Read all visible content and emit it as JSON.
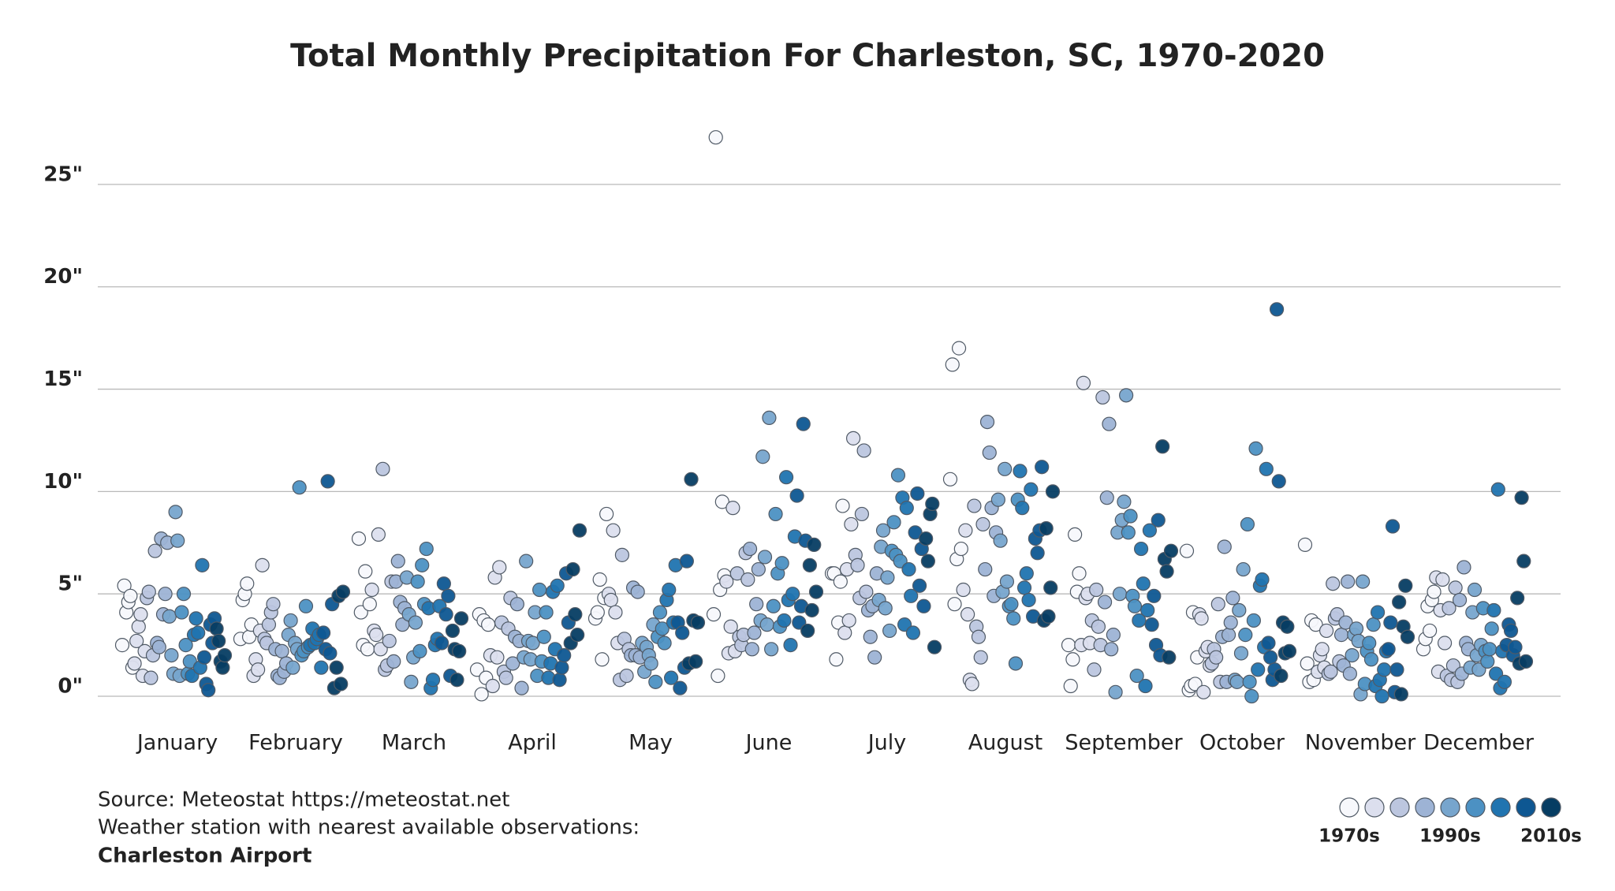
{
  "chart_data": {
    "type": "strip",
    "title": "Total Monthly Precipitation For Charleston, SC, 1970-2020",
    "categories": [
      "January",
      "February",
      "March",
      "April",
      "May",
      "June",
      "July",
      "August",
      "September",
      "October",
      "November",
      "December"
    ],
    "values": [
      [
        2.5,
        5.4,
        4.1,
        4.6,
        4.9,
        1.4,
        1.6,
        2.7,
        3.4,
        4.0,
        1.0,
        2.2,
        4.8,
        5.1,
        0.9,
        2.0,
        7.1,
        2.6,
        2.4,
        7.7,
        4.0,
        5.0,
        7.5,
        3.9,
        2.0,
        1.1,
        9.0,
        7.6,
        1.0,
        4.1,
        5.0,
        2.5,
        1.1,
        1.7,
        1.0,
        3.0,
        3.8,
        3.1,
        1.4,
        6.4,
        1.9,
        0.6,
        0.3,
        3.5,
        2.6,
        3.8,
        3.3,
        2.7,
        1.7,
        1.4,
        2.0
      ],
      [
        2.8,
        4.7,
        5.0,
        5.5,
        2.9,
        3.5,
        1.0,
        1.8,
        1.3,
        3.2,
        6.4,
        2.8,
        2.6,
        3.5,
        4.1,
        4.5,
        2.3,
        1.0,
        0.9,
        2.2,
        1.2,
        1.6,
        3.0,
        3.7,
        1.4,
        2.6,
        2.3,
        10.2,
        2.0,
        2.2,
        4.4,
        2.4,
        2.5,
        3.3,
        2.6,
        2.8,
        3.0,
        1.4,
        3.1,
        2.3,
        10.5,
        2.1,
        4.5,
        0.4,
        1.4,
        4.9,
        0.6,
        5.1
      ],
      [
        7.7,
        4.1,
        2.5,
        6.1,
        2.3,
        4.5,
        5.2,
        3.2,
        3.0,
        7.9,
        2.3,
        11.1,
        1.3,
        1.5,
        2.7,
        5.6,
        1.7,
        5.6,
        6.6,
        4.6,
        3.5,
        4.3,
        5.8,
        4.0,
        0.7,
        1.9,
        3.6,
        5.6,
        2.2,
        6.4,
        4.5,
        7.2,
        4.3,
        0.4,
        0.8,
        2.5,
        2.8,
        4.4,
        2.6,
        5.5,
        4.0,
        4.9,
        1.0,
        3.2,
        2.3,
        0.8,
        2.2,
        3.8
      ],
      [
        1.3,
        4.0,
        0.1,
        3.7,
        0.9,
        3.5,
        2.0,
        0.5,
        5.8,
        1.9,
        6.3,
        3.6,
        1.2,
        0.9,
        3.3,
        4.8,
        1.6,
        2.9,
        4.5,
        2.7,
        0.4,
        1.9,
        6.6,
        2.7,
        1.8,
        2.6,
        4.1,
        1.0,
        5.2,
        1.7,
        2.9,
        4.1,
        0.9,
        1.6,
        5.1,
        2.3,
        5.4,
        0.8,
        1.4,
        2.0,
        6.0,
        3.6,
        2.6,
        6.2,
        4.0,
        3.0,
        8.1
      ],
      [
        3.8,
        4.1,
        5.7,
        1.8,
        4.8,
        8.9,
        5.0,
        4.7,
        8.1,
        4.1,
        2.6,
        0.8,
        6.9,
        2.8,
        1.0,
        2.3,
        2.0,
        5.3,
        2.0,
        5.1,
        1.9,
        2.6,
        1.2,
        2.4,
        2.0,
        1.6,
        3.5,
        0.7,
        2.9,
        4.1,
        3.3,
        2.6,
        4.7,
        5.2,
        0.9,
        3.6,
        6.4,
        3.6,
        0.4,
        3.1,
        1.4,
        6.6,
        1.6,
        10.6,
        3.7,
        1.7,
        3.6
      ],
      [
        4.0,
        27.3,
        1.0,
        5.2,
        9.5,
        5.9,
        5.6,
        2.1,
        3.4,
        9.2,
        2.2,
        6.0,
        2.9,
        2.5,
        3.0,
        7.0,
        5.7,
        7.2,
        2.3,
        3.1,
        4.5,
        6.2,
        3.7,
        11.7,
        6.8,
        3.5,
        13.6,
        2.3,
        4.4,
        8.9,
        6.0,
        3.4,
        6.5,
        3.7,
        10.7,
        4.7,
        2.5,
        5.0,
        7.8,
        9.8,
        3.6,
        4.4,
        13.3,
        7.6,
        3.2,
        6.4,
        4.2,
        7.4,
        5.1
      ],
      [
        6.0,
        6.0,
        1.8,
        3.6,
        5.6,
        9.3,
        3.1,
        6.2,
        3.7,
        8.4,
        12.6,
        6.9,
        6.4,
        4.8,
        8.9,
        12.0,
        5.1,
        4.2,
        2.9,
        4.4,
        1.9,
        6.0,
        4.7,
        7.3,
        8.1,
        4.3,
        5.8,
        3.2,
        7.1,
        8.5,
        6.9,
        10.8,
        6.6,
        9.7,
        3.5,
        9.2,
        6.2,
        4.9,
        3.1,
        8.0,
        9.9,
        5.4,
        7.2,
        4.4,
        7.7,
        6.6,
        8.9,
        9.4,
        2.4
      ],
      [
        10.6,
        16.2,
        4.5,
        6.7,
        17.0,
        7.2,
        5.2,
        8.1,
        4.0,
        0.8,
        0.6,
        9.3,
        3.4,
        2.9,
        1.9,
        8.4,
        6.2,
        13.4,
        11.9,
        9.2,
        4.9,
        8.0,
        9.6,
        7.6,
        5.1,
        11.1,
        5.6,
        4.4,
        4.5,
        3.8,
        1.6,
        9.6,
        11.0,
        9.2,
        5.3,
        6.0,
        4.7,
        10.1,
        3.9,
        7.7,
        7.0,
        8.1,
        11.2,
        3.7,
        8.2,
        3.9,
        5.3,
        10.0
      ],
      [
        2.5,
        0.5,
        1.8,
        7.9,
        5.1,
        6.0,
        2.5,
        15.3,
        4.8,
        5.0,
        2.6,
        3.7,
        1.3,
        5.2,
        3.4,
        2.5,
        14.6,
        4.6,
        9.7,
        13.3,
        2.3,
        3.0,
        0.2,
        8.0,
        5.0,
        8.6,
        9.5,
        14.7,
        8.0,
        8.8,
        4.9,
        4.4,
        1.0,
        3.7,
        7.2,
        5.5,
        0.5,
        4.2,
        8.1,
        3.5,
        4.9,
        2.5,
        8.6,
        2.0,
        12.2,
        6.7,
        6.1,
        1.9,
        7.1
      ],
      [
        7.1,
        0.3,
        0.5,
        4.1,
        0.6,
        1.9,
        4.0,
        3.8,
        0.2,
        2.2,
        2.4,
        1.5,
        1.6,
        2.3,
        1.9,
        4.5,
        0.7,
        2.9,
        7.3,
        0.7,
        3.0,
        3.6,
        4.8,
        0.8,
        0.7,
        4.2,
        2.1,
        6.2,
        3.0,
        8.4,
        0.7,
        0.0,
        3.7,
        12.1,
        1.3,
        5.4,
        5.7,
        2.4,
        11.1,
        2.6,
        1.9,
        0.8,
        1.3,
        18.9,
        10.5,
        1.0,
        3.6,
        2.1,
        3.4,
        2.2
      ],
      [
        7.4,
        1.6,
        0.7,
        3.7,
        0.8,
        3.5,
        1.2,
        2.0,
        2.3,
        1.4,
        3.2,
        1.1,
        1.2,
        5.5,
        3.8,
        4.0,
        1.7,
        3.0,
        1.5,
        3.6,
        5.6,
        1.1,
        2.0,
        3.0,
        3.3,
        2.7,
        0.1,
        5.6,
        0.6,
        2.2,
        2.6,
        1.8,
        3.5,
        0.5,
        4.1,
        0.8,
        0.0,
        1.3,
        2.2,
        2.3,
        3.6,
        8.3,
        0.2,
        1.3,
        4.6,
        0.1,
        3.4,
        5.4,
        2.9
      ],
      [
        2.3,
        2.8,
        4.4,
        3.2,
        4.7,
        5.1,
        5.8,
        1.2,
        4.2,
        5.7,
        2.6,
        1.0,
        4.3,
        0.8,
        1.5,
        5.3,
        0.7,
        4.7,
        1.1,
        6.3,
        2.6,
        2.3,
        1.4,
        4.1,
        5.2,
        2.0,
        1.3,
        2.5,
        4.3,
        2.2,
        1.7,
        2.3,
        3.3,
        4.2,
        1.1,
        10.1,
        0.4,
        2.2,
        0.7,
        2.5,
        3.5,
        3.2,
        2.0,
        2.4,
        4.8,
        1.6,
        9.7,
        6.6,
        1.7
      ]
    ],
    "ylim": [
      -0.5,
      27.5
    ],
    "yticks": [
      {
        "value": 0,
        "label": "0\""
      },
      {
        "value": 5,
        "label": "5\""
      },
      {
        "value": 10,
        "label": "10\""
      },
      {
        "value": 15,
        "label": "15\""
      },
      {
        "value": 20,
        "label": "20\""
      },
      {
        "value": 25,
        "label": "25\""
      }
    ],
    "grid": true,
    "legend": {
      "colors": [
        "#f7f8fc",
        "#dcdfee",
        "#bcc6df",
        "#9db3d5",
        "#77a5cd",
        "#4c91c3",
        "#2074b0",
        "#0e5792",
        "#063d63"
      ],
      "labels": [
        "1970s",
        "1990s",
        "2010s"
      ]
    },
    "source": {
      "lines": [
        "Source: Meteostat https://meteostat.net",
        "Weather station with nearest available observations:"
      ],
      "station": "Charleston Airport"
    }
  }
}
